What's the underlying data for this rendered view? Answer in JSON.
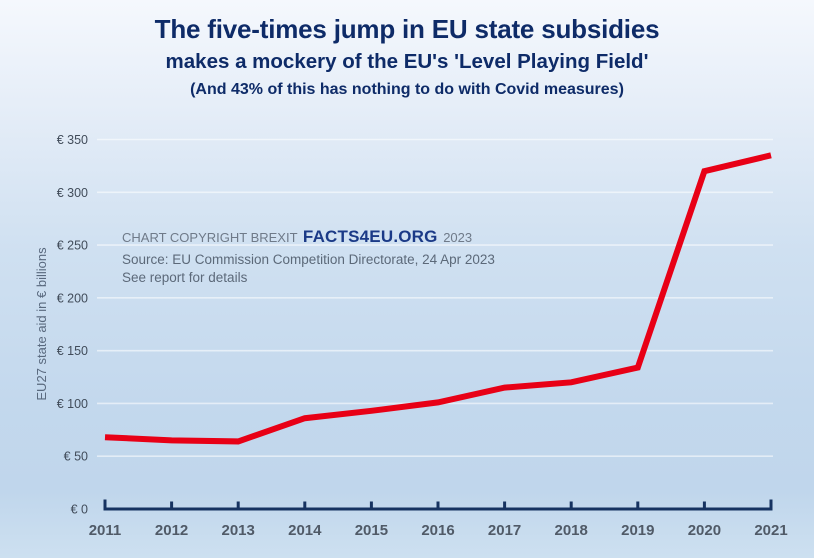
{
  "header": {
    "title": "The five-times jump in EU state subsidies",
    "subtitle": "makes a mockery of the EU's 'Level Playing Field'",
    "note": "(And 43% of this has nothing to do with Covid measures)"
  },
  "copyright": {
    "prefix": "CHART COPYRIGHT BREXIT",
    "brand": "FACTS4EU.ORG",
    "year": "2023",
    "source": "Source: EU Commission Competition Directorate, 24 Apr 2023",
    "see_report": "See report for details"
  },
  "colors": {
    "title_navy": "#0e2b68",
    "brand_navy": "#1b3a87",
    "line_red": "#e80016",
    "axis_navy": "#163361",
    "gridline": "rgba(255,255,255,0.55)"
  },
  "chart_data": {
    "type": "line",
    "title": "The five-times jump in EU state subsidies",
    "subtitle": "makes a mockery of the EU's 'Level Playing Field'",
    "note": "(And 43% of this has nothing to do with Covid measures)",
    "x": [
      2011,
      2012,
      2013,
      2014,
      2015,
      2016,
      2017,
      2018,
      2019,
      2020,
      2021
    ],
    "series": [
      {
        "name": "EU27 state aid",
        "values": [
          68,
          65,
          64,
          86,
          93,
          101,
          115,
          120,
          134,
          320,
          335
        ]
      }
    ],
    "xlabel": "",
    "ylabel": "EU27 state aid in € billions",
    "ylim": [
      0,
      350
    ],
    "ytick_step": 50,
    "ytick_prefix": "€ ",
    "grid": true,
    "legend_position": "none",
    "line_color": "#e80016",
    "axis_color": "#163361",
    "grid_color": "rgba(255,255,255,0.55)"
  }
}
